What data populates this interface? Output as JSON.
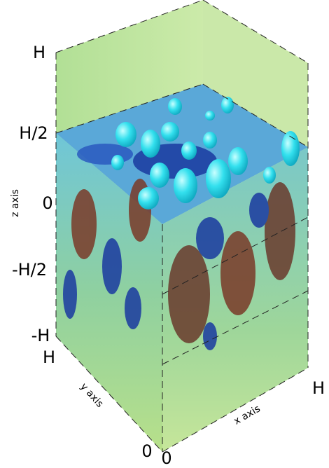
{
  "z_axis": {
    "label": "z axis",
    "ticks": [
      "H",
      "H/2",
      "0",
      "-H/2",
      "-H"
    ]
  },
  "y_axis": {
    "label": "y axis",
    "ticks": [
      "H",
      "0"
    ]
  },
  "x_axis": {
    "label": "x axis",
    "ticks": [
      "0",
      "H"
    ]
  }
}
